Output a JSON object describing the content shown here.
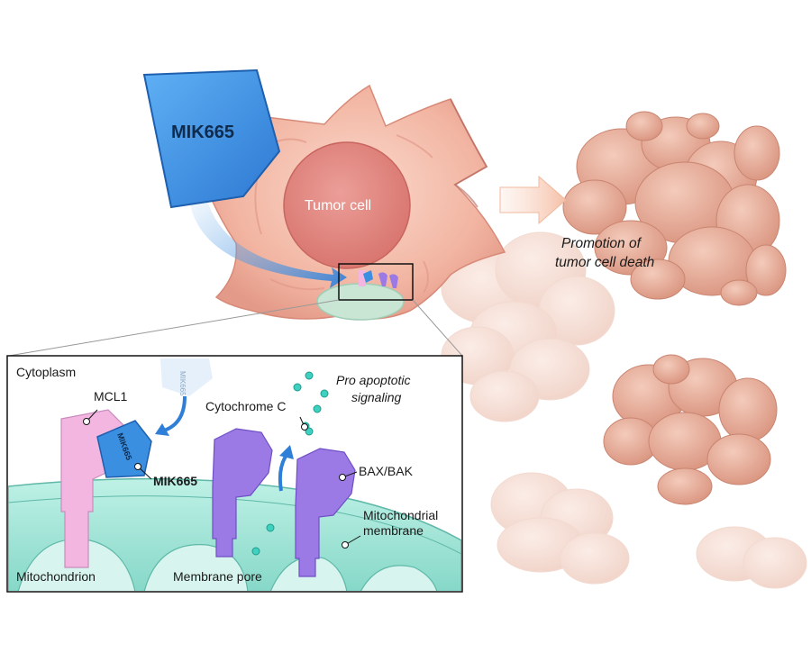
{
  "drug": {
    "name": "MIK665",
    "inset_name": "MIK665",
    "faded_name": "MIK665"
  },
  "cell": {
    "label": "Tumor cell"
  },
  "outcome": {
    "line1": "Promotion of",
    "line2": "tumor cell death"
  },
  "inset": {
    "cytoplasm": "Cytoplasm",
    "mcl1": "MCL1",
    "mik665": "MIK665",
    "cytochrome": "Cytochrome C",
    "pro_line1": "Pro apoptotic",
    "pro_line2": "signaling",
    "baxbak": "BAX/BAK",
    "mito_membrane_line1": "Mitochondrial",
    "mito_membrane_line2": "membrane",
    "mitochondrion": "Mitochondrion",
    "membrane_pore": "Membrane pore"
  },
  "colors": {
    "drug_blue": "#3a8fe0",
    "cell_pink": "#f0b0a0",
    "nucleus": "#e08a85",
    "mcl1_pink": "#f2b6e0",
    "baxbak_purple": "#9b7ae6",
    "membrane_teal": "#9fe3d6",
    "arrow_peach": "#f6c5ad"
  }
}
